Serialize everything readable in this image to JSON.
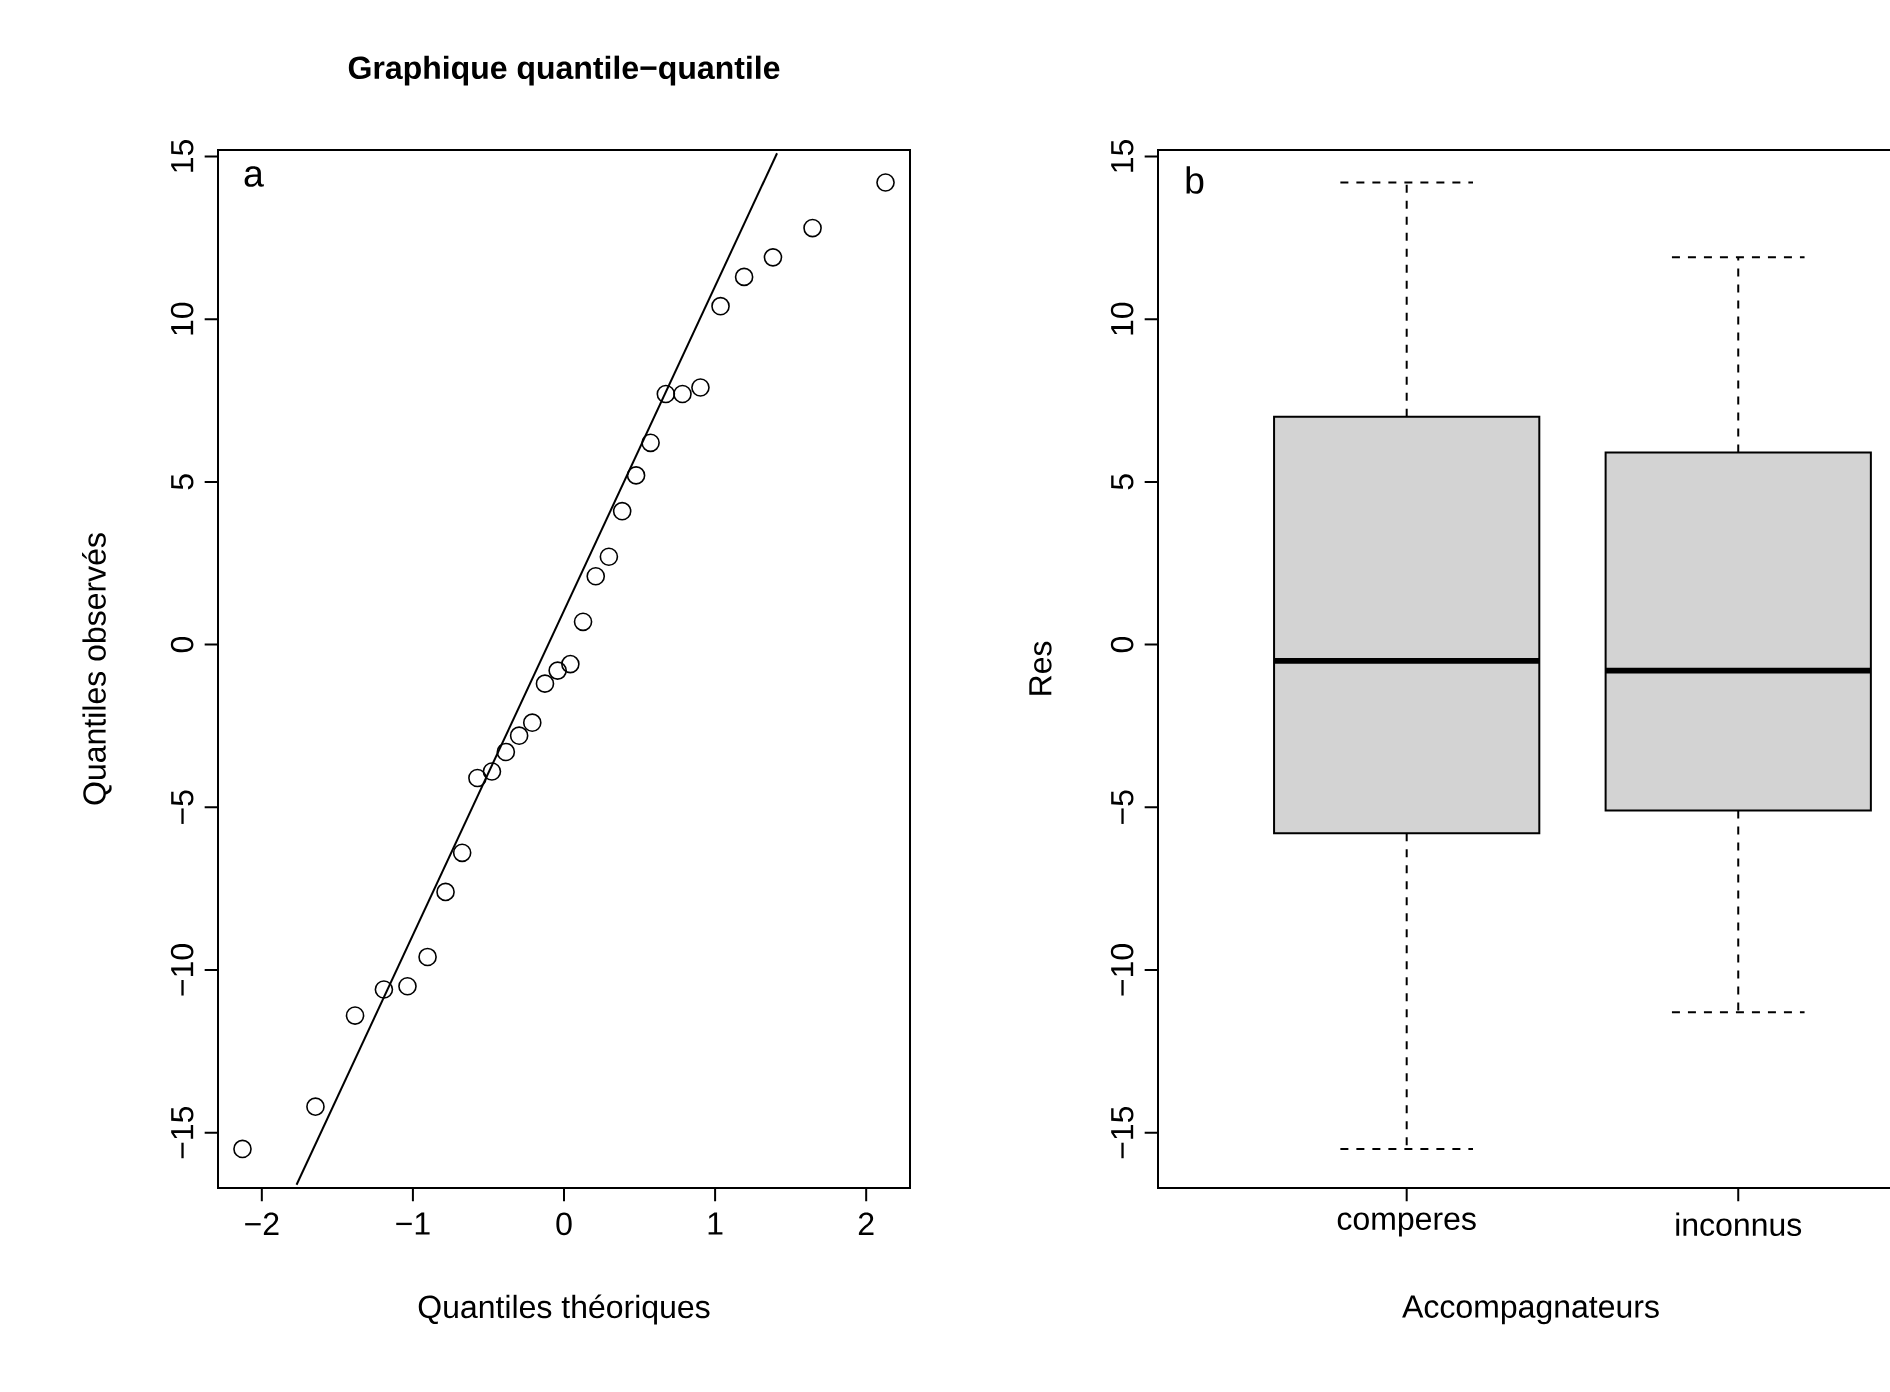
{
  "chart_data": [
    {
      "type": "scatter",
      "title": "Graphique quantile−quantile",
      "xlabel": "Quantiles théoriques",
      "ylabel": "Quantiles observés",
      "annotations": [
        "a"
      ],
      "xlim": [
        -2.29,
        2.29
      ],
      "ylim": [
        -16.7,
        15.2
      ],
      "xticks": [
        {
          "value": -2,
          "label": "−2"
        },
        {
          "value": -1,
          "label": "−1"
        },
        0,
        1,
        2
      ],
      "yticks": [
        {
          "value": -15,
          "label": "−15"
        },
        {
          "value": -10,
          "label": "−10"
        },
        {
          "value": -5,
          "label": "−5"
        },
        0,
        5,
        10,
        15
      ],
      "series": [
        {
          "type": "scatter",
          "marker": "circle",
          "color": "#000000",
          "x": [
            -2.128,
            -1.645,
            -1.383,
            -1.192,
            -1.036,
            -0.903,
            -0.784,
            -0.674,
            -0.573,
            -0.477,
            -0.385,
            -0.297,
            -0.21,
            -0.126,
            -0.042,
            0.042,
            0.126,
            0.21,
            0.297,
            0.385,
            0.477,
            0.573,
            0.674,
            0.784,
            0.903,
            1.036,
            1.192,
            1.383,
            1.645,
            2.128
          ],
          "values": [
            -15.5,
            -14.2,
            -11.4,
            -10.6,
            -10.5,
            -9.6,
            -7.6,
            -6.4,
            -4.1,
            -3.9,
            -3.3,
            -2.8,
            -2.4,
            -1.2,
            -0.8,
            -0.6,
            0.7,
            2.1,
            2.7,
            4.1,
            5.2,
            6.2,
            7.7,
            7.7,
            7.9,
            10.4,
            11.3,
            11.9,
            12.8,
            14.2
          ]
        },
        {
          "type": "line",
          "color": "#000000",
          "x": [
            -1.77,
            1.41
          ],
          "values": [
            -16.6,
            15.1
          ]
        }
      ]
    },
    {
      "type": "box",
      "xlabel": "Accompagnateurs",
      "ylabel": "Res",
      "annotations": [
        "b"
      ],
      "color": "#d3d3d3",
      "categories": [
        "comperes",
        "inconnus"
      ],
      "ylim": [
        -16.7,
        15.2
      ],
      "yticks": [
        {
          "value": -15,
          "label": "−15"
        },
        {
          "value": -10,
          "label": "−10"
        },
        {
          "value": -5,
          "label": "−5"
        },
        0,
        5,
        10,
        15
      ],
      "boxes": [
        {
          "low": -15.5,
          "q1": -5.8,
          "median": -0.5,
          "q3": 7.0,
          "high": 14.2
        },
        {
          "low": -11.3,
          "q1": -5.1,
          "median": -0.8,
          "q3": 5.9,
          "high": 11.9
        }
      ]
    }
  ]
}
